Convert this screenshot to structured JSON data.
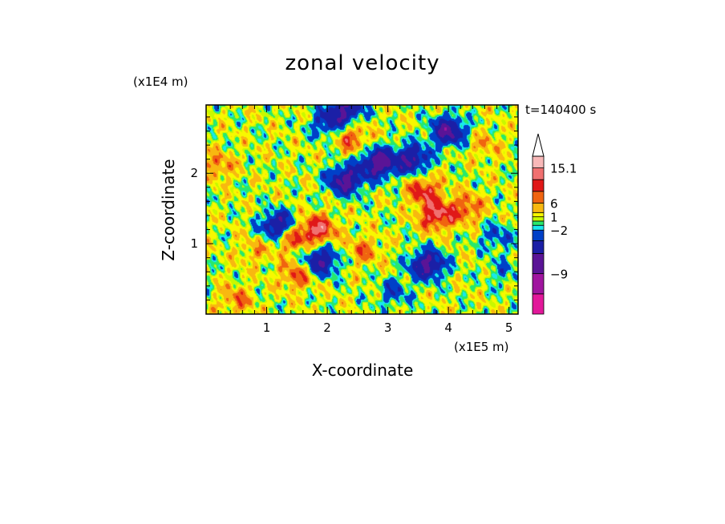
{
  "chart_data": {
    "type": "heatmap",
    "title": "zonal velocity",
    "xlabel": "X-coordinate",
    "ylabel": "Z-coordinate",
    "x_unit": "(x1E5 m)",
    "y_unit": "(x1E4 m)",
    "time_label": "t=140400 s",
    "xlim": [
      0,
      5.15
    ],
    "ylim": [
      0,
      2.97
    ],
    "x_ticks": [
      "1",
      "2",
      "3",
      "4",
      "5"
    ],
    "y_ticks": [
      "1",
      "2"
    ],
    "colorbar": {
      "tick_labels": [
        "15.1",
        "6",
        "1",
        "−2",
        "−9"
      ],
      "levels": [
        -9,
        -2,
        1,
        6,
        15.1
      ],
      "colors": [
        "#e2189a",
        "#a0159f",
        "#5a1496",
        "#1b1fa6",
        "#0040c8",
        "#18e8ee",
        "#28e86c",
        "#c8f800",
        "#f8f800",
        "#f8b810",
        "#f06410",
        "#e01818",
        "#f07070",
        "#f8b8b8",
        "#ffffff"
      ]
    },
    "features": [
      {
        "x": 1.4,
        "z": 1.1,
        "v": 5
      },
      {
        "x": 1.85,
        "z": 1.2,
        "v": 6
      },
      {
        "x": 1.2,
        "z": 1.25,
        "v": -8
      },
      {
        "x": 1.9,
        "z": 0.75,
        "v": -7
      },
      {
        "x": 2.3,
        "z": 1.9,
        "v": -8
      },
      {
        "x": 2.4,
        "z": 2.5,
        "v": 4
      },
      {
        "x": 2.3,
        "z": 2.9,
        "v": -7
      },
      {
        "x": 2.85,
        "z": 2.15,
        "v": -9
      },
      {
        "x": 3.4,
        "z": 2.2,
        "v": -7
      },
      {
        "x": 3.6,
        "z": 1.75,
        "v": 5
      },
      {
        "x": 3.8,
        "z": 1.4,
        "v": 6
      },
      {
        "x": 3.65,
        "z": 0.7,
        "v": -8
      },
      {
        "x": 4.0,
        "z": 2.6,
        "v": -8
      },
      {
        "x": 4.3,
        "z": 1.5,
        "v": 4
      },
      {
        "x": 2.6,
        "z": 0.9,
        "v": 3
      },
      {
        "x": 0.8,
        "z": 0.9,
        "v": 2
      },
      {
        "x": 1.5,
        "z": 0.55,
        "v": 4
      },
      {
        "x": 4.6,
        "z": 2.4,
        "v": 2
      },
      {
        "x": 0.2,
        "z": 2.1,
        "v": 3
      },
      {
        "x": 4.9,
        "z": 0.6,
        "v": -2
      },
      {
        "x": 3.1,
        "z": 0.3,
        "v": -3
      },
      {
        "x": 0.5,
        "z": 0.2,
        "v": 3
      },
      {
        "x": 2.0,
        "z": 2.7,
        "v": -4
      },
      {
        "x": 4.8,
        "z": 1.1,
        "v": -3
      }
    ]
  }
}
